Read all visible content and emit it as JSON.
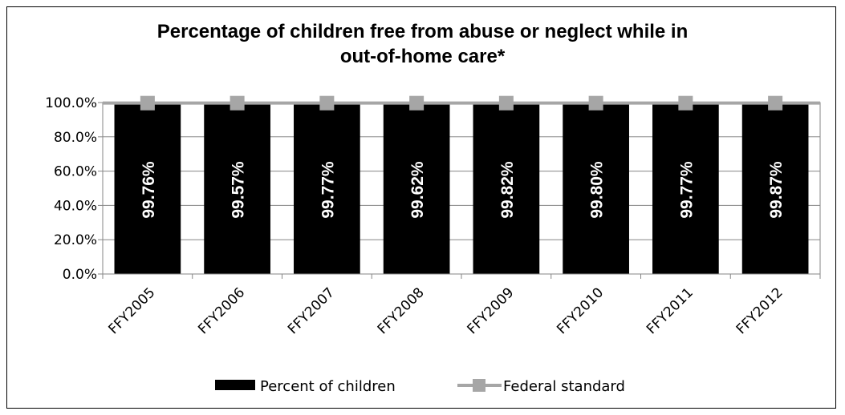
{
  "chart_data": {
    "type": "bar",
    "title_lines": [
      "Percentage of children free from abuse or neglect while in",
      "out-of-home care*"
    ],
    "categories": [
      "FFY2005",
      "FFY2006",
      "FFY2007",
      "FFY2008",
      "FFY2009",
      "FFY2010",
      "FFY2011",
      "FFY2012"
    ],
    "series": [
      {
        "name": "Percent of children",
        "kind": "bar",
        "color": "#000000",
        "values": [
          99.76,
          99.57,
          99.77,
          99.62,
          99.82,
          99.8,
          99.77,
          99.87
        ],
        "labels": [
          "99.76%",
          "99.57%",
          "99.77%",
          "99.62%",
          "99.82%",
          "99.80%",
          "99.77%",
          "99.87%"
        ]
      },
      {
        "name": "Federal standard",
        "kind": "line",
        "color": "#a6a6a6",
        "marker": "square",
        "values": [
          99.68,
          99.68,
          99.68,
          99.68,
          99.68,
          99.68,
          99.68,
          99.68
        ]
      }
    ],
    "y_ticks": [
      "0.0%",
      "20.0%",
      "40.0%",
      "60.0%",
      "80.0%",
      "100.0%"
    ],
    "y_tick_values": [
      0,
      20,
      40,
      60,
      80,
      100
    ],
    "ylim": [
      0,
      100
    ],
    "xlabel": "",
    "ylabel": "",
    "grid": true,
    "legend_position": "bottom"
  }
}
